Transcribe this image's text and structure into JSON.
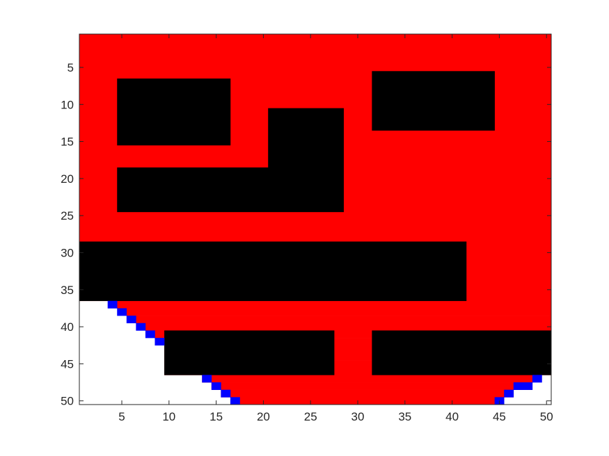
{
  "chart_data": {
    "type": "heatmap",
    "title": "",
    "xlabel": "",
    "ylabel": "",
    "xlim": [
      0.5,
      50.5
    ],
    "ylim": [
      0.5,
      50.5
    ],
    "y_direction": "reversed",
    "grid": false,
    "legend": "none",
    "x_ticks": [
      5,
      10,
      15,
      20,
      25,
      30,
      35,
      40,
      45,
      50
    ],
    "y_ticks": [
      5,
      10,
      15,
      20,
      25,
      30,
      35,
      40,
      45,
      50
    ],
    "x_tick_labels": [
      "5",
      "10",
      "15",
      "20",
      "25",
      "30",
      "35",
      "40",
      "45",
      "50"
    ],
    "y_tick_labels": [
      "5",
      "10",
      "15",
      "20",
      "25",
      "30",
      "35",
      "40",
      "45",
      "50"
    ],
    "grid_size": [
      50,
      50
    ],
    "legend_colors": {
      "explored": "#ff0000",
      "obstacle": "#000000",
      "path": "#0000ff",
      "free": "#ffffff"
    },
    "explored_background_rows": [
      1,
      36
    ],
    "explored_lower_spans": [
      {
        "row": 37,
        "cols": [
          5,
          50
        ]
      },
      {
        "row": 38,
        "cols": [
          6,
          50
        ]
      },
      {
        "row": 39,
        "cols": [
          7,
          50
        ]
      },
      {
        "row": 40,
        "cols": [
          8,
          50
        ]
      },
      {
        "row": 41,
        "cols": [
          9,
          50
        ]
      },
      {
        "row": 42,
        "cols": [
          10,
          50
        ]
      },
      {
        "row": 43,
        "cols": [
          10,
          50
        ]
      },
      {
        "row": 44,
        "cols": [
          10,
          50
        ]
      },
      {
        "row": 45,
        "cols": [
          10,
          50
        ]
      },
      {
        "row": 46,
        "cols": [
          10,
          50
        ]
      },
      {
        "row": 47,
        "cols": [
          14,
          48
        ]
      },
      {
        "row": 48,
        "cols": [
          15,
          47
        ]
      },
      {
        "row": 49,
        "cols": [
          16,
          46
        ]
      },
      {
        "row": 50,
        "cols": [
          17,
          45
        ]
      }
    ],
    "obstacles": [
      {
        "rows": [
          7,
          15
        ],
        "cols": [
          5,
          16
        ]
      },
      {
        "rows": [
          11,
          18
        ],
        "cols": [
          21,
          28
        ]
      },
      {
        "rows": [
          19,
          24
        ],
        "cols": [
          5,
          28
        ]
      },
      {
        "rows": [
          6,
          13
        ],
        "cols": [
          32,
          44
        ]
      },
      {
        "rows": [
          29,
          36
        ],
        "cols": [
          1,
          41
        ]
      },
      {
        "rows": [
          41,
          46
        ],
        "cols": [
          10,
          27
        ]
      },
      {
        "rows": [
          41,
          46
        ],
        "cols": [
          32,
          50
        ]
      }
    ],
    "path_cells": [
      [
        37,
        4
      ],
      [
        38,
        5
      ],
      [
        39,
        6
      ],
      [
        40,
        7
      ],
      [
        41,
        8
      ],
      [
        42,
        9
      ],
      [
        47,
        14
      ],
      [
        48,
        15
      ],
      [
        49,
        16
      ],
      [
        50,
        17
      ],
      [
        47,
        49
      ],
      [
        48,
        48
      ],
      [
        48,
        47
      ],
      [
        49,
        46
      ],
      [
        50,
        45
      ]
    ]
  }
}
